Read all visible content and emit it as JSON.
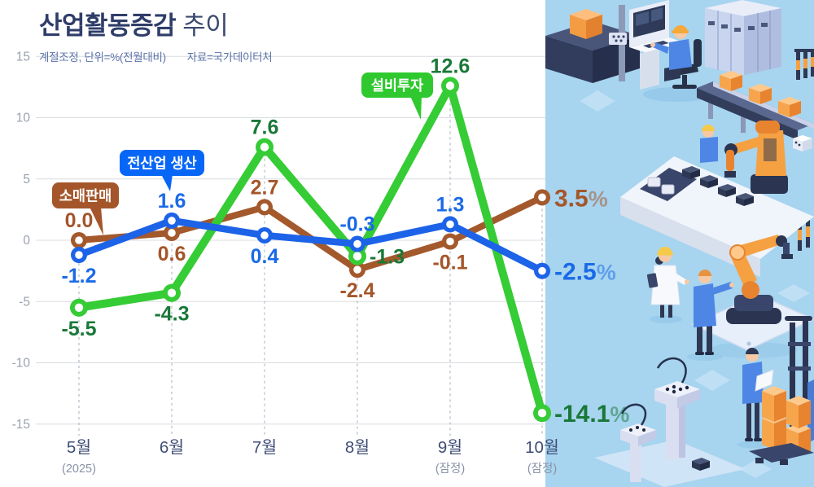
{
  "header": {
    "title_bold": "산업활동증감",
    "title_light": "추이",
    "note": "계절조정, 단위=%(전월대비)",
    "source": "자료=국가데이터처"
  },
  "colors": {
    "title": "#2F3D69",
    "subtitle": "#5C73A8",
    "grid": "#D9DCE1",
    "guide_dash": "#B2BAC8",
    "y_tick": "#9AA1AE",
    "x_label": "#3F4E77",
    "x_sublabel": "#8A92A6",
    "illustration_bg": "#A7D4EF"
  },
  "chart_data": {
    "type": "line",
    "unit": "%",
    "title": "산업활동증감 추이",
    "note": "계절조정, 단위=%(전월대비)",
    "source": "자료=국가데이터처",
    "grid": true,
    "ylim": [
      -15,
      15
    ],
    "yticks": [
      15,
      10,
      5,
      0,
      -5,
      -10,
      -15
    ],
    "categories": [
      {
        "label": "5월",
        "sub": "(2025)"
      },
      {
        "label": "6월",
        "sub": ""
      },
      {
        "label": "7월",
        "sub": ""
      },
      {
        "label": "8월",
        "sub": ""
      },
      {
        "label": "9월",
        "sub": "(잠정)"
      },
      {
        "label": "10월",
        "sub": "(잠정)"
      }
    ],
    "series": [
      {
        "key": "retail-sales",
        "name": "소매판매",
        "line_color": "#A4592C",
        "bubble_color": "#A4562A",
        "value_color": "#A4562A",
        "values": [
          0.0,
          0.6,
          2.7,
          -2.4,
          -0.1,
          3.5
        ],
        "labels": [
          "0.0",
          "0.6",
          "2.7",
          "-2.4",
          "-0.1",
          "3.5"
        ],
        "final_suffix": "%",
        "label_pos": [
          "above",
          "below",
          "above",
          "below",
          "below",
          "end"
        ]
      },
      {
        "key": "industry-production",
        "name": "전산업 생산",
        "line_color": "#1D63E8",
        "bubble_color": "#0866F7",
        "value_color": "#1A6AE8",
        "values": [
          -1.2,
          1.6,
          0.4,
          -0.3,
          1.3,
          -2.5
        ],
        "labels": [
          "-1.2",
          "1.6",
          "0.4",
          "-0.3",
          "1.3",
          "-2.5"
        ],
        "final_suffix": "%",
        "label_pos": [
          "below",
          "above",
          "below",
          "above",
          "above",
          "end"
        ]
      },
      {
        "key": "equipment-investment",
        "name": "설비투자",
        "line_color": "#35CC35",
        "bubble_color": "#2FC92F",
        "value_color": "#1A7838",
        "values": [
          -5.5,
          -4.3,
          7.6,
          -1.3,
          12.6,
          -14.1
        ],
        "labels": [
          "-5.5",
          "-4.3",
          "7.6",
          "-1.3",
          "12.6",
          "-14.1"
        ],
        "final_suffix": "%",
        "label_pos": [
          "below",
          "below",
          "above",
          "right",
          "above",
          "end"
        ]
      }
    ]
  }
}
